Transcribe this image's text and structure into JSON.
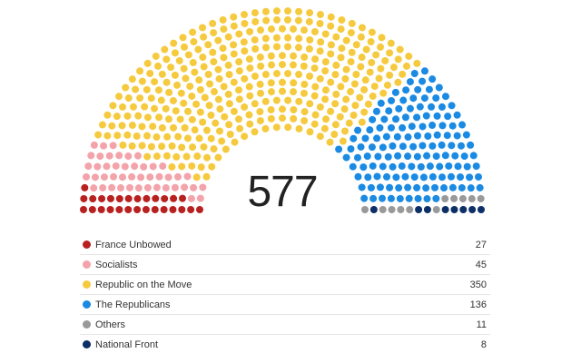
{
  "chart_data": {
    "type": "parliament",
    "title": "",
    "total": "577",
    "series": [
      {
        "name": "France Unbowed",
        "value": 27,
        "color": "#b8211f"
      },
      {
        "name": "Socialists",
        "value": 45,
        "color": "#f3a3aa"
      },
      {
        "name": "Republic on the Move",
        "value": 350,
        "color": "#f6ca3f"
      },
      {
        "name": "The Republicans",
        "value": 136,
        "color": "#1a8ae3"
      },
      {
        "name": "Others",
        "value": 11,
        "color": "#999999"
      },
      {
        "name": "National Front",
        "value": 8,
        "color": "#0b2f66"
      }
    ]
  }
}
